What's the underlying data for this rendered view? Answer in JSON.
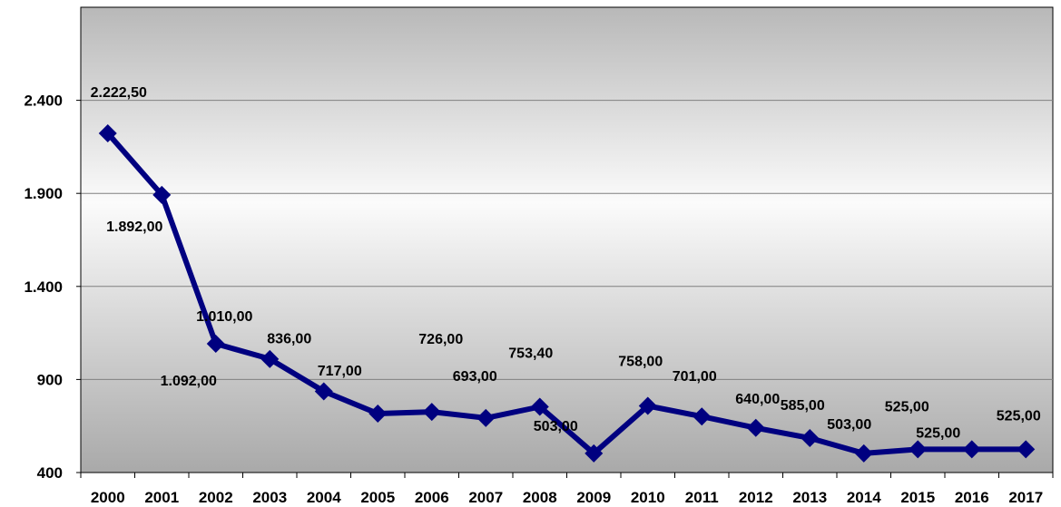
{
  "chart_data": {
    "type": "line",
    "title": "",
    "xlabel": "",
    "ylabel": "",
    "categories": [
      "2000",
      "2001",
      "2002",
      "2003",
      "2004",
      "2005",
      "2006",
      "2007",
      "2008",
      "2009",
      "2010",
      "2011",
      "2012",
      "2013",
      "2014",
      "2015",
      "2016",
      "2017"
    ],
    "series": [
      {
        "values": [
          2222.5,
          1892,
          1092,
          1010,
          836,
          717,
          726,
          693,
          753.4,
          503,
          758,
          701,
          640,
          585,
          503,
          525,
          525,
          525
        ],
        "labels": [
          "2.222,50",
          "1.892,00",
          "1.092,00",
          "1.010,00",
          "836,00",
          "717,00",
          "726,00",
          "693,00",
          "753,40",
          "503,00",
          "758,00",
          "701,00",
          "640,00",
          "585,00",
          "503,00",
          "525,00",
          "525,00",
          "525,00"
        ],
        "color": "#000080"
      }
    ],
    "yticks": [
      400,
      900,
      1400,
      1900,
      2400
    ],
    "ytick_labels": [
      "400",
      "900",
      "1.400",
      "1.900",
      "2.400"
    ],
    "ylim": [
      400,
      2900
    ],
    "grid": true,
    "legend": "none",
    "plot_background": "gradient gray",
    "gridline_color": "#808080"
  }
}
